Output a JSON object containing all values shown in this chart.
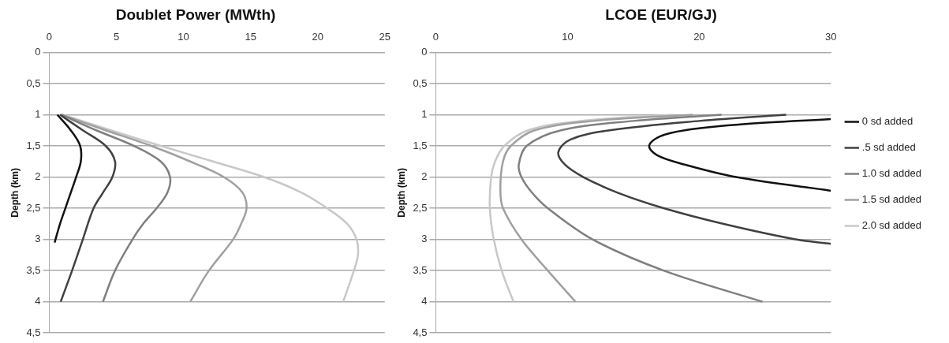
{
  "chart_data": [
    {
      "type": "line",
      "title": "Doublet Power (MWth)",
      "ylabel": "Depth (km)",
      "xlim": [
        0,
        25
      ],
      "xticks": [
        0,
        5,
        10,
        15,
        20,
        25
      ],
      "ylim": [
        4.5,
        0
      ],
      "yticks": [
        0,
        {
          "value": 0.5,
          "label": "0,5"
        },
        1,
        {
          "value": 1.5,
          "label": "1,5"
        },
        2,
        {
          "value": 2.5,
          "label": "2,5"
        },
        3,
        {
          "value": 3.5,
          "label": "3,5"
        },
        4,
        {
          "value": 4.5,
          "label": "4,5"
        }
      ],
      "grid": "y",
      "legend": false,
      "series": [
        {
          "color": "#111111",
          "x": [
            0.6,
            1.6,
            2.3,
            2.35,
            2.0,
            1.6,
            1.2,
            0.8,
            0.4
          ],
          "values": [
            1,
            1.25,
            1.5,
            1.75,
            2,
            2.25,
            2.5,
            2.75,
            3.05
          ]
        },
        {
          "color": "#404040",
          "x": [
            0.8,
            2.5,
            4.2,
            4.9,
            4.7,
            4.0,
            3.3,
            2.5,
            1.7,
            0.85
          ],
          "values": [
            1,
            1.25,
            1.5,
            1.75,
            2,
            2.25,
            2.5,
            3,
            3.5,
            4
          ]
        },
        {
          "color": "#7f7f7f",
          "x": [
            0.9,
            3.5,
            6.3,
            8.3,
            9.0,
            8.8,
            8.0,
            7.0,
            6.2,
            4.9,
            4.0
          ],
          "values": [
            1,
            1.25,
            1.5,
            1.75,
            2,
            2.25,
            2.5,
            2.75,
            3,
            3.5,
            4
          ]
        },
        {
          "color": "#a0a0a0",
          "x": [
            0.9,
            4.2,
            7.6,
            10.5,
            13.0,
            14.4,
            14.7,
            14.3,
            13.7,
            11.9,
            10.5
          ],
          "values": [
            1,
            1.25,
            1.5,
            1.75,
            2,
            2.25,
            2.5,
            2.75,
            3,
            3.5,
            4
          ]
        },
        {
          "color": "#c8c8c8",
          "x": [
            1.0,
            4.6,
            8.3,
            12.2,
            16.0,
            18.8,
            20.7,
            22.2,
            22.9,
            23.0,
            22.7,
            21.9
          ],
          "values": [
            1,
            1.25,
            1.5,
            1.75,
            2,
            2.25,
            2.5,
            2.75,
            3,
            3.25,
            3.5,
            4
          ]
        }
      ]
    },
    {
      "type": "line",
      "title": "LCOE (EUR/GJ)",
      "ylabel": "Depth (km)",
      "xlim": [
        0,
        30
      ],
      "xticks": [
        0,
        10,
        20,
        30
      ],
      "ylim": [
        4.5,
        0
      ],
      "yticks": [
        0,
        {
          "value": 0.5,
          "label": "0,5"
        },
        1,
        {
          "value": 1.5,
          "label": "1,5"
        },
        2,
        {
          "value": 2.5,
          "label": "2,5"
        },
        3,
        {
          "value": 3.5,
          "label": "3,5"
        },
        4,
        {
          "value": 4.5,
          "label": "4,5"
        }
      ],
      "grid": "y",
      "legend": "right",
      "series": [
        {
          "name": "0 sd added",
          "color": "#111111",
          "x": [
            30,
            23.5,
            18.9,
            17,
            16.2,
            16.8,
            18.9,
            22.8,
            30
          ],
          "values": [
            1.07,
            1.15,
            1.25,
            1.35,
            1.5,
            1.65,
            1.8,
            2.0,
            2.22
          ]
        },
        {
          "name": ".5 sd added",
          "color": "#404040",
          "x": [
            26.6,
            20,
            13.2,
            10.2,
            9.3,
            9.8,
            11.2,
            13.8,
            17.3,
            21.8,
            27.3,
            30
          ],
          "values": [
            1,
            1.1,
            1.25,
            1.4,
            1.6,
            1.8,
            2,
            2.25,
            2.5,
            2.75,
            3,
            3.07
          ]
        },
        {
          "name": "1.0 sd added",
          "color": "#7f7f7f",
          "x": [
            21.7,
            15,
            9.5,
            6.9,
            6.3,
            6.5,
            7.3,
            8.5,
            11.9,
            17.3,
            24.8
          ],
          "values": [
            1,
            1.1,
            1.25,
            1.5,
            1.8,
            2,
            2.25,
            2.5,
            3,
            3.5,
            4
          ]
        },
        {
          "name": "1.5 sd added",
          "color": "#a0a0a0",
          "x": [
            19.5,
            12,
            7.5,
            5.7,
            5.1,
            4.9,
            5.1,
            6.5,
            8.5,
            10.6
          ],
          "values": [
            1,
            1.1,
            1.25,
            1.5,
            1.75,
            2.2,
            2.5,
            3,
            3.5,
            4
          ]
        },
        {
          "name": "2.0 sd added",
          "color": "#c8c8c8",
          "x": [
            18,
            11,
            7,
            5.2,
            4.5,
            4.2,
            4.1,
            4.4,
            5.0,
            5.9
          ],
          "values": [
            1,
            1.1,
            1.25,
            1.5,
            1.75,
            2,
            2.5,
            3,
            3.5,
            4
          ]
        }
      ]
    }
  ]
}
